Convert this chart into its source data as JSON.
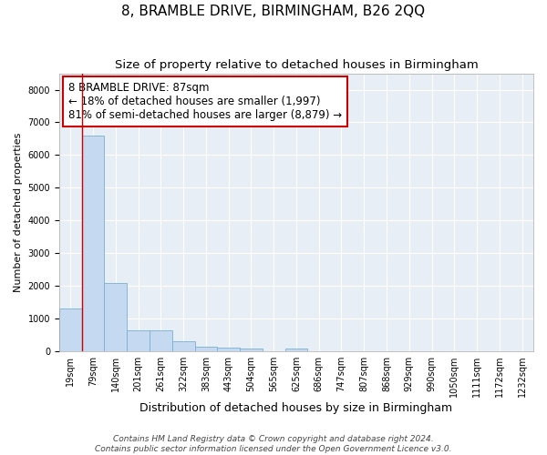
{
  "title": "8, BRAMBLE DRIVE, BIRMINGHAM, B26 2QQ",
  "subtitle": "Size of property relative to detached houses in Birmingham",
  "xlabel": "Distribution of detached houses by size in Birmingham",
  "ylabel": "Number of detached properties",
  "footer_line1": "Contains HM Land Registry data © Crown copyright and database right 2024.",
  "footer_line2": "Contains public sector information licensed under the Open Government Licence v3.0.",
  "bin_labels": [
    "19sqm",
    "79sqm",
    "140sqm",
    "201sqm",
    "261sqm",
    "322sqm",
    "383sqm",
    "443sqm",
    "504sqm",
    "565sqm",
    "625sqm",
    "686sqm",
    "747sqm",
    "807sqm",
    "868sqm",
    "929sqm",
    "990sqm",
    "1050sqm",
    "1111sqm",
    "1172sqm",
    "1232sqm"
  ],
  "bar_values": [
    1300,
    6600,
    2080,
    650,
    650,
    300,
    150,
    100,
    80,
    0,
    80,
    0,
    0,
    0,
    0,
    0,
    0,
    0,
    0,
    0,
    0
  ],
  "bar_color": "#c5d9f0",
  "bar_edge_color": "#7bafd4",
  "property_line_x": 1,
  "annotation_text": "8 BRAMBLE DRIVE: 87sqm\n← 18% of detached houses are smaller (1,997)\n81% of semi-detached houses are larger (8,879) →",
  "annotation_box_facecolor": "#ffffff",
  "annotation_box_edgecolor": "#cc0000",
  "line_color": "#cc0000",
  "ylim": [
    0,
    8500
  ],
  "yticks": [
    0,
    1000,
    2000,
    3000,
    4000,
    5000,
    6000,
    7000,
    8000
  ],
  "plot_background": "#e8eef5",
  "figure_background": "#ffffff",
  "grid_color": "#ffffff",
  "title_fontsize": 11,
  "subtitle_fontsize": 9.5,
  "xlabel_fontsize": 9,
  "ylabel_fontsize": 8,
  "tick_fontsize": 7,
  "annotation_fontsize": 8.5,
  "footer_fontsize": 6.5
}
